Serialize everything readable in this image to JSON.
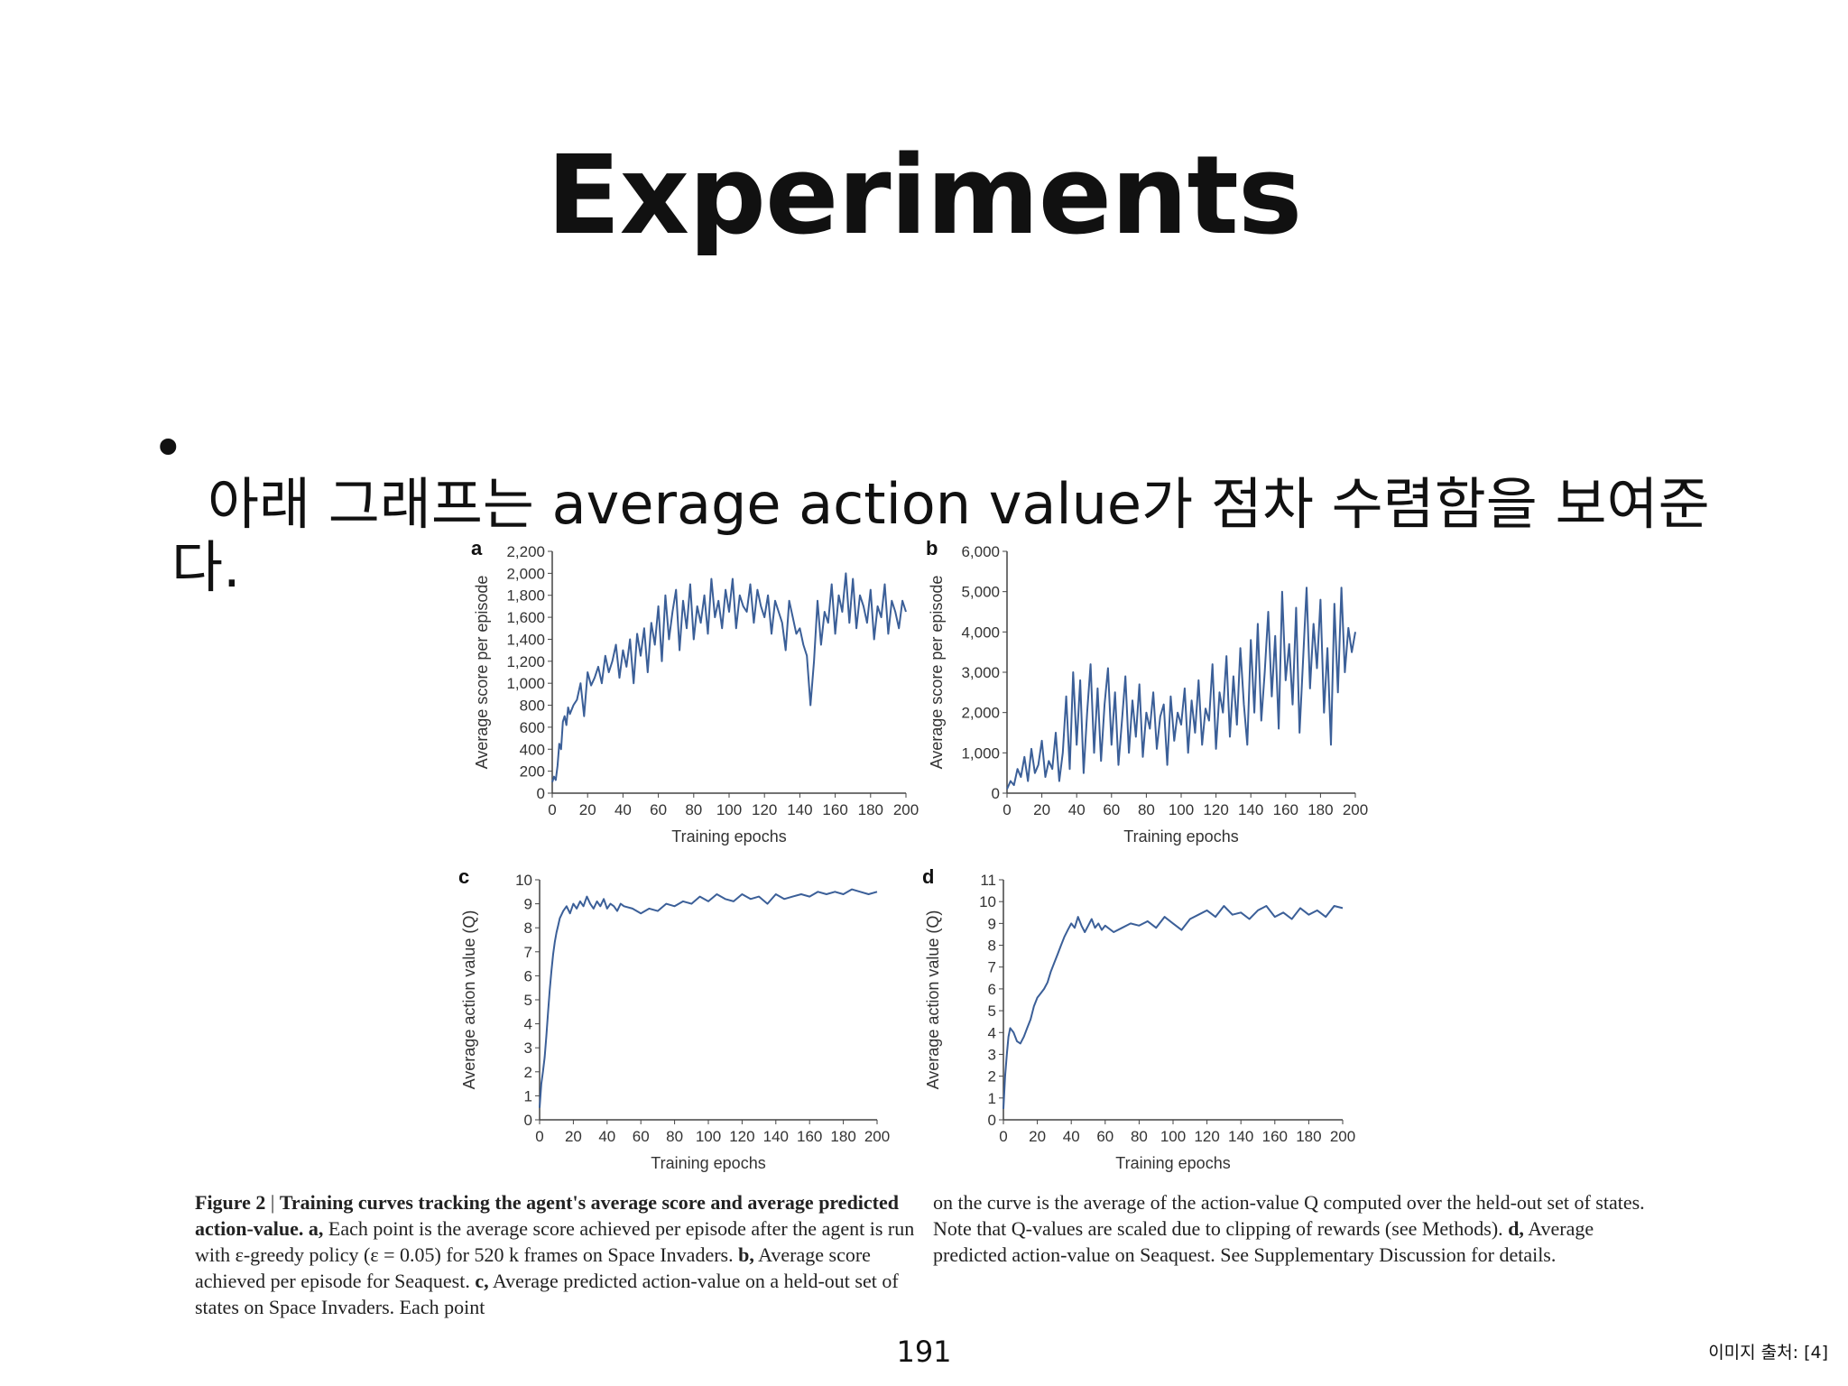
{
  "slide": {
    "title": "Experiments",
    "bullet_dot": "•",
    "bullet": "아래 그래프는 average action value가 점차 수렴함을 보여준다.",
    "page_number": "191",
    "image_source": "이미지 출처: [4]"
  },
  "caption": {
    "figure_label": "Figure 2",
    "bold_intro": "Training curves tracking the agent's average score and average predicted action-value.",
    "a_label": "a,",
    "a_text": "Each point is the average score achieved per episode after the agent is run with ε-greedy policy (ε = 0.05) for 520 k frames on Space Invaders.",
    "b_label": "b,",
    "b_text": "Average score achieved per episode for Seaquest.",
    "c_label": "c,",
    "c_text": "Average predicted action-value on a held-out set of states on Space Invaders. Each point on the curve is the average of the action-value Q computed over the held-out set of states. Note that Q-values are scaled due to clipping of rewards (see Methods).",
    "d_label": "d,",
    "d_text": "Average predicted action-value on Seaquest. See Supplementary Discussion for details."
  },
  "colors": {
    "line": "#3b5f98",
    "axis": "#444444"
  },
  "chart_data": [
    {
      "id": "a",
      "type": "line",
      "panel_letter": "a",
      "xlabel": "Training epochs",
      "ylabel": "Average score per episode",
      "xlim": [
        0,
        200
      ],
      "ylim": [
        0,
        2200
      ],
      "xticks": [
        0,
        20,
        40,
        60,
        80,
        100,
        120,
        140,
        160,
        180,
        200
      ],
      "yticks": [
        0,
        200,
        400,
        600,
        800,
        1000,
        1200,
        1400,
        1600,
        1800,
        2000,
        2200
      ],
      "xtick_labels": [
        "0",
        "20",
        "40",
        "60",
        "80",
        "100",
        "120",
        "140",
        "160",
        "180",
        "200"
      ],
      "ytick_labels": [
        "0",
        "200",
        "400",
        "600",
        "800",
        "1,000",
        "1,200",
        "1,400",
        "1,600",
        "1,800",
        "2,000",
        "2,200"
      ],
      "x": [
        0,
        1,
        2,
        3,
        4,
        5,
        6,
        7,
        8,
        9,
        10,
        12,
        14,
        16,
        18,
        20,
        22,
        24,
        26,
        28,
        30,
        32,
        34,
        36,
        38,
        40,
        42,
        44,
        46,
        48,
        50,
        52,
        54,
        56,
        58,
        60,
        62,
        64,
        66,
        68,
        70,
        72,
        74,
        76,
        78,
        80,
        82,
        84,
        86,
        88,
        90,
        92,
        94,
        96,
        98,
        100,
        102,
        104,
        106,
        108,
        110,
        112,
        114,
        116,
        118,
        120,
        122,
        124,
        126,
        128,
        130,
        132,
        134,
        136,
        138,
        140,
        142,
        144,
        146,
        148,
        150,
        152,
        154,
        156,
        158,
        160,
        162,
        164,
        166,
        168,
        170,
        172,
        174,
        176,
        178,
        180,
        182,
        184,
        186,
        188,
        190,
        192,
        194,
        196,
        198,
        200
      ],
      "y": [
        100,
        150,
        120,
        250,
        450,
        400,
        650,
        700,
        620,
        780,
        720,
        800,
        850,
        1000,
        700,
        1100,
        980,
        1050,
        1150,
        1000,
        1250,
        1100,
        1200,
        1350,
        1050,
        1300,
        1150,
        1400,
        1000,
        1450,
        1250,
        1500,
        1100,
        1550,
        1350,
        1700,
        1200,
        1800,
        1400,
        1650,
        1850,
        1300,
        1750,
        1500,
        1900,
        1400,
        1700,
        1550,
        1800,
        1450,
        1950,
        1600,
        1750,
        1500,
        1850,
        1650,
        1950,
        1500,
        1800,
        1700,
        1650,
        1900,
        1550,
        1850,
        1700,
        1600,
        1800,
        1450,
        1750,
        1650,
        1550,
        1300,
        1750,
        1600,
        1450,
        1500,
        1350,
        1250,
        800,
        1200,
        1750,
        1350,
        1650,
        1550,
        1900,
        1450,
        1800,
        1650,
        2000,
        1550,
        1950,
        1500,
        1800,
        1700,
        1550,
        1850,
        1400,
        1700,
        1600,
        1900,
        1450,
        1750,
        1650,
        1500,
        1750,
        1650
      ]
    },
    {
      "id": "b",
      "type": "line",
      "panel_letter": "b",
      "xlabel": "Training epochs",
      "ylabel": "Average score per episode",
      "xlim": [
        0,
        200
      ],
      "ylim": [
        0,
        6000
      ],
      "xticks": [
        0,
        20,
        40,
        60,
        80,
        100,
        120,
        140,
        160,
        180,
        200
      ],
      "yticks": [
        0,
        1000,
        2000,
        3000,
        4000,
        5000,
        6000
      ],
      "xtick_labels": [
        "0",
        "20",
        "40",
        "60",
        "80",
        "100",
        "120",
        "140",
        "160",
        "180",
        "200"
      ],
      "ytick_labels": [
        "0",
        "1,000",
        "2,000",
        "3,000",
        "4,000",
        "5,000",
        "6,000"
      ],
      "x": [
        0,
        2,
        4,
        6,
        8,
        10,
        12,
        14,
        16,
        18,
        20,
        22,
        24,
        26,
        28,
        30,
        32,
        34,
        36,
        38,
        40,
        42,
        44,
        46,
        48,
        50,
        52,
        54,
        56,
        58,
        60,
        62,
        64,
        66,
        68,
        70,
        72,
        74,
        76,
        78,
        80,
        82,
        84,
        86,
        88,
        90,
        92,
        94,
        96,
        98,
        100,
        102,
        104,
        106,
        108,
        110,
        112,
        114,
        116,
        118,
        120,
        122,
        124,
        126,
        128,
        130,
        132,
        134,
        136,
        138,
        140,
        142,
        144,
        146,
        148,
        150,
        152,
        154,
        156,
        158,
        160,
        162,
        164,
        166,
        168,
        170,
        172,
        174,
        176,
        178,
        180,
        182,
        184,
        186,
        188,
        190,
        192,
        194,
        196,
        198,
        200
      ],
      "y": [
        100,
        300,
        200,
        600,
        400,
        900,
        300,
        1100,
        500,
        700,
        1300,
        400,
        800,
        600,
        1500,
        300,
        1000,
        2400,
        600,
        3000,
        1200,
        2800,
        500,
        2000,
        3200,
        1000,
        2600,
        800,
        2200,
        3100,
        1200,
        2500,
        700,
        1800,
        2900,
        1000,
        2300,
        1400,
        2700,
        900,
        2000,
        1600,
        2500,
        1100,
        1900,
        2200,
        700,
        2400,
        1300,
        2000,
        1700,
        2600,
        1000,
        2300,
        1500,
        2800,
        1200,
        2100,
        1800,
        3200,
        1100,
        2500,
        2000,
        3400,
        1400,
        2900,
        1700,
        3600,
        2200,
        1200,
        3800,
        2000,
        4200,
        1800,
        3000,
        4500,
        2400,
        3900,
        1600,
        5000,
        2800,
        3700,
        2200,
        4600,
        1500,
        3300,
        5100,
        2600,
        4200,
        3100,
        4800,
        2000,
        3600,
        1200,
        4700,
        2500,
        5100,
        3000,
        4100,
        3500,
        4000
      ]
    },
    {
      "id": "c",
      "type": "line",
      "panel_letter": "c",
      "xlabel": "Training epochs",
      "ylabel": "Average action value (Q)",
      "xlim": [
        0,
        200
      ],
      "ylim": [
        0,
        10
      ],
      "xticks": [
        0,
        20,
        40,
        60,
        80,
        100,
        120,
        140,
        160,
        180,
        200
      ],
      "yticks": [
        0,
        1,
        2,
        3,
        4,
        5,
        6,
        7,
        8,
        9,
        10
      ],
      "xtick_labels": [
        "0",
        "20",
        "40",
        "60",
        "80",
        "100",
        "120",
        "140",
        "160",
        "180",
        "200"
      ],
      "ytick_labels": [
        "0",
        "1",
        "2",
        "3",
        "4",
        "5",
        "6",
        "7",
        "8",
        "9",
        "10"
      ],
      "x": [
        0,
        1,
        2,
        3,
        4,
        5,
        6,
        7,
        8,
        9,
        10,
        11,
        12,
        14,
        16,
        18,
        20,
        22,
        24,
        26,
        28,
        30,
        32,
        34,
        36,
        38,
        40,
        42,
        44,
        46,
        48,
        50,
        55,
        60,
        65,
        70,
        75,
        80,
        85,
        90,
        95,
        100,
        105,
        110,
        115,
        120,
        125,
        130,
        135,
        140,
        145,
        150,
        155,
        160,
        165,
        170,
        175,
        180,
        185,
        190,
        195,
        200
      ],
      "y": [
        0.5,
        1.5,
        2.0,
        2.6,
        3.5,
        4.5,
        5.4,
        6.2,
        6.9,
        7.4,
        7.8,
        8.1,
        8.4,
        8.7,
        8.9,
        8.6,
        9.0,
        8.8,
        9.1,
        8.9,
        9.3,
        9.0,
        8.8,
        9.1,
        8.9,
        9.2,
        8.8,
        9.0,
        8.9,
        8.7,
        9.0,
        8.9,
        8.8,
        8.6,
        8.8,
        8.7,
        9.0,
        8.9,
        9.1,
        9.0,
        9.3,
        9.1,
        9.4,
        9.2,
        9.1,
        9.4,
        9.2,
        9.3,
        9.0,
        9.4,
        9.2,
        9.3,
        9.4,
        9.3,
        9.5,
        9.4,
        9.5,
        9.4,
        9.6,
        9.5,
        9.4,
        9.5
      ]
    },
    {
      "id": "d",
      "type": "line",
      "panel_letter": "d",
      "xlabel": "Training epochs",
      "ylabel": "Average action value (Q)",
      "xlim": [
        0,
        200
      ],
      "ylim": [
        0,
        11
      ],
      "xticks": [
        0,
        20,
        40,
        60,
        80,
        100,
        120,
        140,
        160,
        180,
        200
      ],
      "yticks": [
        0,
        1,
        2,
        3,
        4,
        5,
        6,
        7,
        8,
        9,
        10,
        11
      ],
      "xtick_labels": [
        "0",
        "20",
        "40",
        "60",
        "80",
        "100",
        "120",
        "140",
        "160",
        "180",
        "200"
      ],
      "ytick_labels": [
        "0",
        "1",
        "2",
        "3",
        "4",
        "5",
        "6",
        "7",
        "8",
        "9",
        "10",
        "11"
      ],
      "x": [
        0,
        1,
        2,
        3,
        4,
        6,
        8,
        10,
        12,
        14,
        16,
        18,
        20,
        22,
        24,
        26,
        28,
        30,
        32,
        34,
        36,
        38,
        40,
        42,
        44,
        46,
        48,
        50,
        52,
        54,
        56,
        58,
        60,
        65,
        70,
        75,
        80,
        85,
        90,
        95,
        100,
        105,
        110,
        115,
        120,
        125,
        130,
        135,
        140,
        145,
        150,
        155,
        160,
        165,
        170,
        175,
        180,
        185,
        190,
        195,
        200
      ],
      "y": [
        0.5,
        2.0,
        3.0,
        3.8,
        4.2,
        4.0,
        3.6,
        3.5,
        3.8,
        4.2,
        4.6,
        5.2,
        5.6,
        5.8,
        6.0,
        6.3,
        6.8,
        7.2,
        7.6,
        8.0,
        8.4,
        8.7,
        9.0,
        8.8,
        9.3,
        8.9,
        8.6,
        8.9,
        9.2,
        8.8,
        9.0,
        8.7,
        8.9,
        8.6,
        8.8,
        9.0,
        8.9,
        9.1,
        8.8,
        9.3,
        9.0,
        8.7,
        9.2,
        9.4,
        9.6,
        9.3,
        9.8,
        9.4,
        9.5,
        9.2,
        9.6,
        9.8,
        9.3,
        9.5,
        9.2,
        9.7,
        9.4,
        9.6,
        9.3,
        9.8,
        9.7
      ]
    }
  ]
}
